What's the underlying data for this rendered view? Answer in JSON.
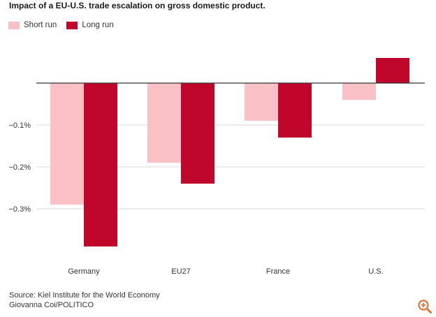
{
  "chart_data": {
    "type": "bar",
    "title": "Impact of a EU-U.S. trade escalation on gross domestic product.",
    "categories": [
      "Germany",
      "EU27",
      "France",
      "U.S."
    ],
    "series": [
      {
        "name": "Short run",
        "color": "#f9c0c6",
        "values": [
          -0.29,
          -0.19,
          -0.09,
          -0.04
        ]
      },
      {
        "name": "Long run",
        "color": "#c0062b",
        "values": [
          -0.39,
          -0.24,
          -0.13,
          0.06
        ]
      }
    ],
    "y_ticks": [
      {
        "value": -0.1,
        "label": "−0.1%"
      },
      {
        "value": -0.2,
        "label": "−0.2%"
      },
      {
        "value": -0.3,
        "label": "−0.3%"
      }
    ],
    "ylim": [
      -0.42,
      0.09
    ],
    "xlabel": "",
    "ylabel": "",
    "grid": true,
    "legend_position": "top-left"
  },
  "footer": {
    "source": "Source: Kiel Institute for the World Economy",
    "credit": "Giovanna Coi/POLITICO"
  },
  "icons": {
    "zoom": "zoom-in-icon"
  },
  "colors": {
    "grid": "#d9d9d9",
    "axis": "#333333",
    "zoom": "#e0743a"
  }
}
